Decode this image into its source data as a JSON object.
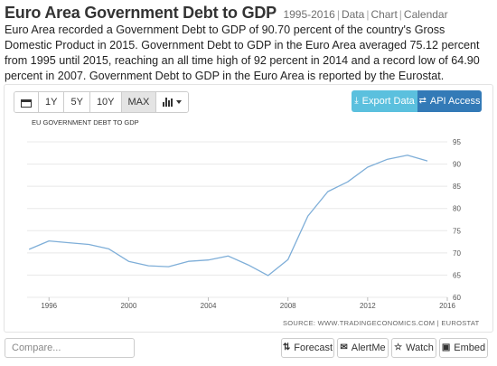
{
  "header": {
    "title": "Euro Area Government Debt to GDP",
    "years": "1995-2016",
    "links": [
      "Data",
      "Chart",
      "Calendar"
    ]
  },
  "description": "Euro Area recorded a Government Debt to GDP of 90.70 percent of the country's Gross Domestic Product in 2015. Government Debt to GDP in the Euro Area averaged 75.12 percent from 1995 until 2015, reaching an all time high of 92 percent in 2014 and a record low of 64.90 percent in 2007. Government Debt to GDP in the Euro Area is reported by the Eurostat.",
  "toolbar": {
    "ranges": [
      "1Y",
      "5Y",
      "10Y",
      "MAX"
    ],
    "active_range": "MAX",
    "export_label": "Export Data",
    "api_label": "API Access"
  },
  "chart_data": {
    "type": "line",
    "title": "EU GOVERNMENT DEBT TO GDP",
    "source": "SOURCE: WWW.TRADINGECONOMICS.COM | EUROSTAT",
    "x": [
      1995,
      1996,
      1997,
      1998,
      1999,
      2000,
      2001,
      2002,
      2003,
      2004,
      2005,
      2006,
      2007,
      2008,
      2009,
      2010,
      2011,
      2012,
      2013,
      2014,
      2015
    ],
    "values": [
      70.8,
      72.7,
      72.3,
      71.9,
      70.9,
      68.1,
      67.1,
      66.9,
      68.1,
      68.4,
      69.3,
      67.3,
      64.9,
      68.5,
      78.3,
      83.8,
      86.0,
      89.3,
      91.1,
      92.0,
      90.7
    ],
    "x_ticks": [
      1996,
      2000,
      2004,
      2008,
      2012,
      2016
    ],
    "y_ticks": [
      60,
      65,
      70,
      75,
      80,
      85,
      90,
      95
    ],
    "xlim": [
      1994.9,
      2016
    ],
    "ylim": [
      60,
      95
    ],
    "grid": "horizontal",
    "line_color": "#7eaed8",
    "grid_color": "#e8e8e8"
  },
  "footer": {
    "compare_placeholder": "Compare...",
    "forecast_label": "Forecast",
    "alert_label": "AlertMe",
    "watch_label": "Watch",
    "embed_label": "Embed"
  }
}
